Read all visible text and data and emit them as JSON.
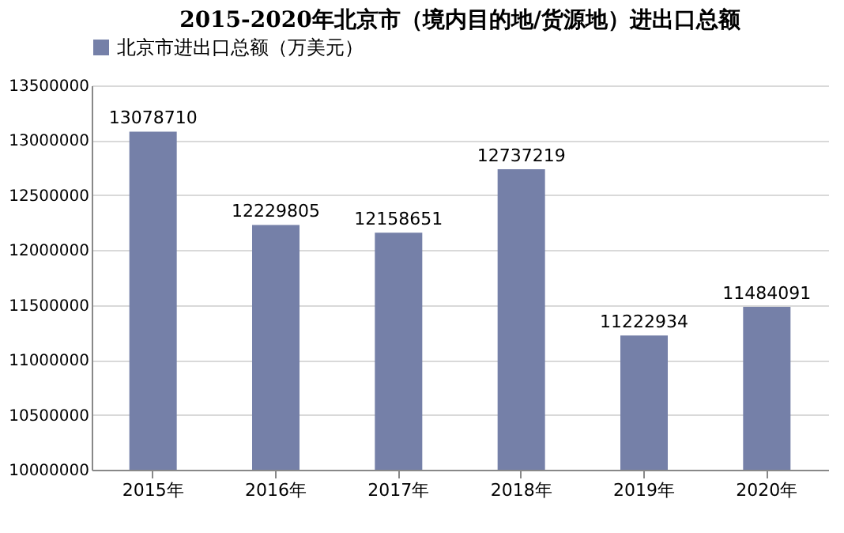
{
  "chart_data": {
    "type": "bar",
    "title": "2015-2020年北京市（境内目的地/货源地）进出口总额",
    "categories": [
      "2015年",
      "2016年",
      "2017年",
      "2018年",
      "2019年",
      "2020年"
    ],
    "series": [
      {
        "name": "北京市进出口总额（万美元）",
        "color": "#7580a8",
        "values": [
          13078710,
          12229805,
          12158651,
          12737219,
          11222934,
          11484091
        ]
      }
    ],
    "ylim": [
      10000000,
      13500000
    ],
    "yticks": [
      10000000,
      10500000,
      11000000,
      11500000,
      12000000,
      12500000,
      13000000,
      13500000
    ],
    "grid": "y",
    "legend": "top",
    "data_labels": true
  }
}
